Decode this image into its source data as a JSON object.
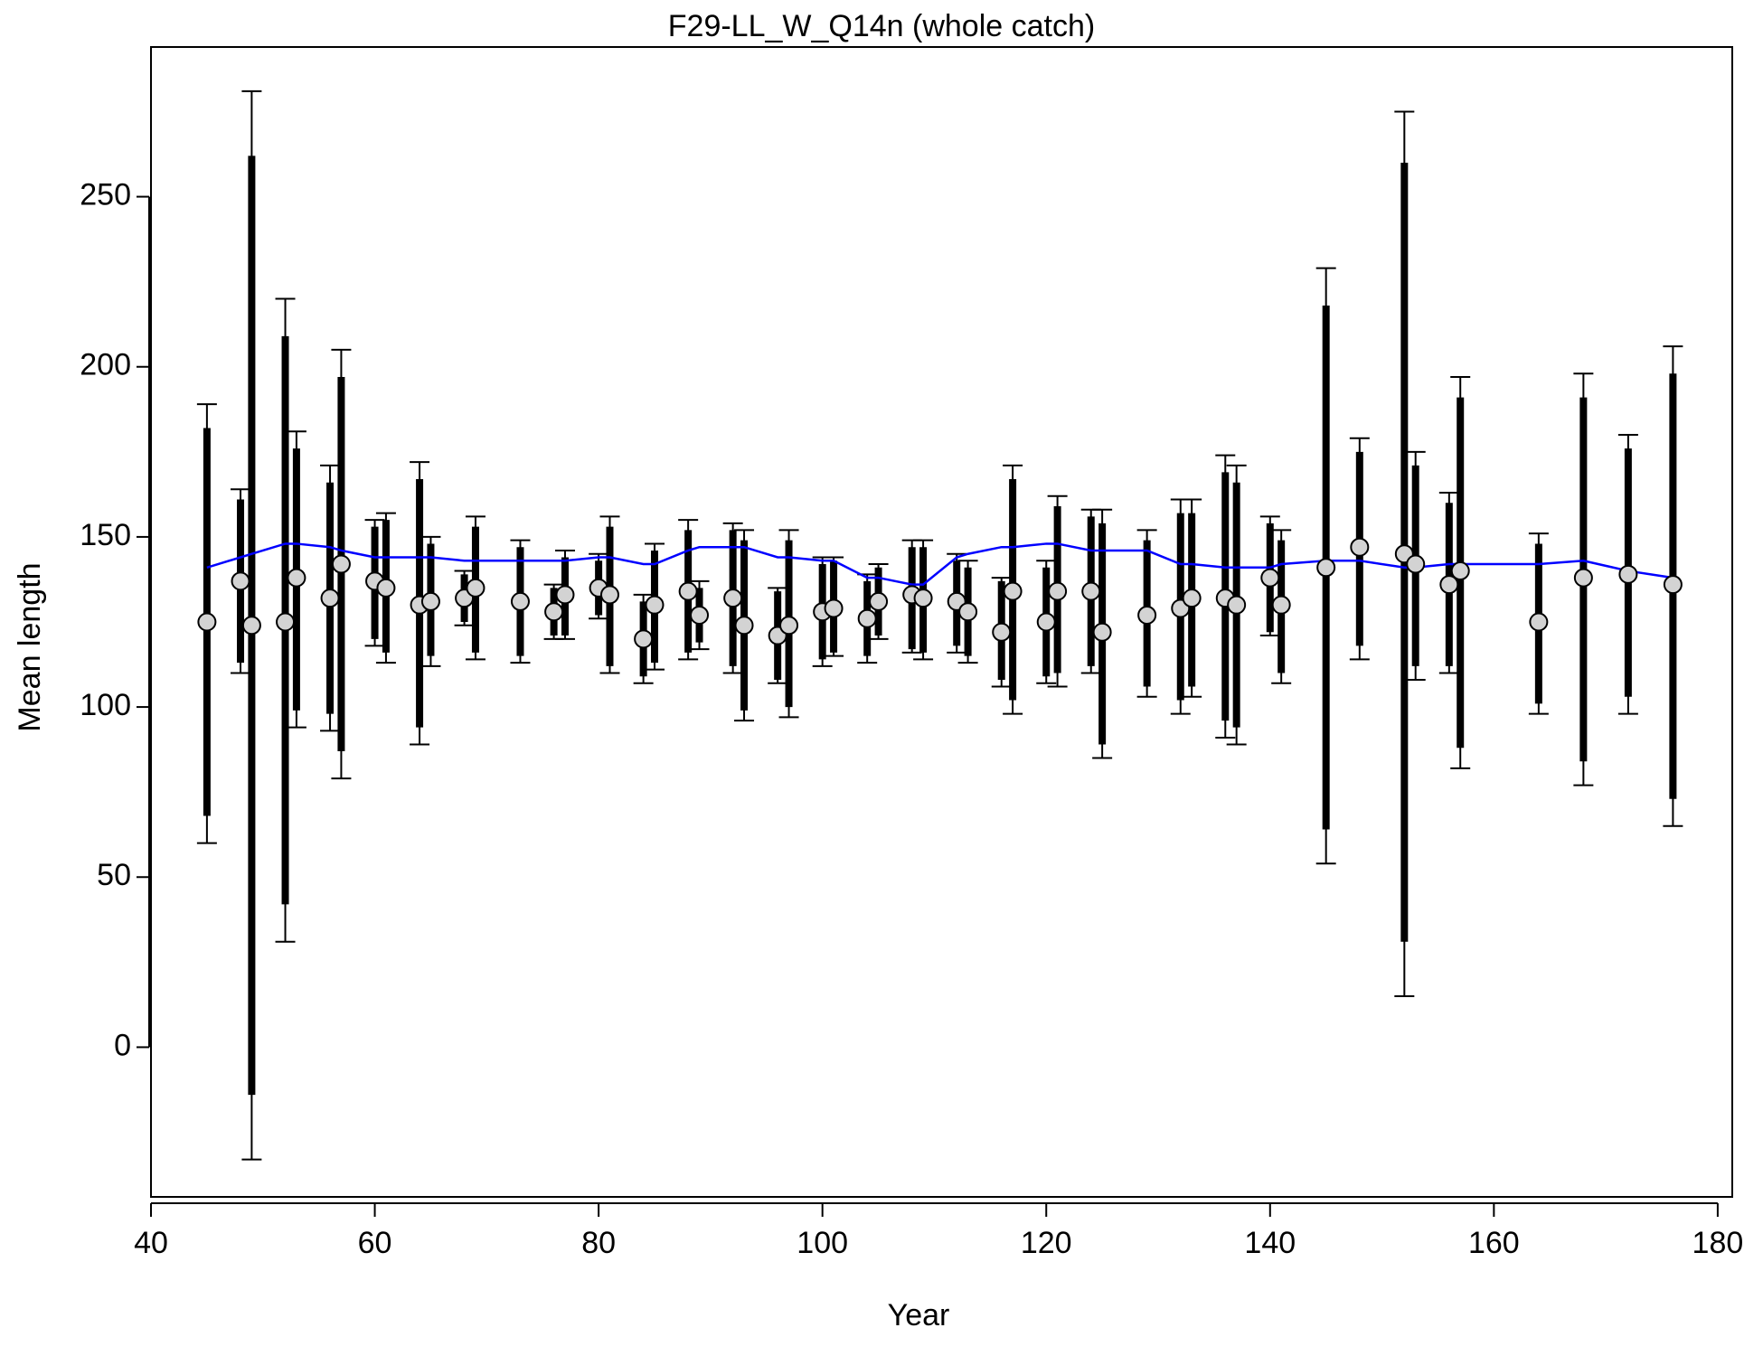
{
  "chart_data": {
    "type": "errorbar",
    "title": "F29-LL_W_Q14n (whole catch)",
    "x_label": "Year",
    "y_label": "Mean length",
    "x": [
      45,
      48,
      49,
      52,
      53,
      56,
      57,
      60,
      61,
      64,
      65,
      68,
      69,
      73,
      76,
      77,
      80,
      81,
      84,
      85,
      88,
      89,
      92,
      93,
      96,
      97,
      100,
      101,
      104,
      105,
      108,
      109,
      112,
      113,
      116,
      117,
      120,
      121,
      124,
      125,
      129,
      132,
      133,
      136,
      137,
      140,
      141,
      145,
      148,
      152,
      153,
      156,
      157,
      164,
      168,
      172,
      176
    ],
    "values": [
      125,
      137,
      124,
      125,
      138,
      132,
      142,
      137,
      135,
      130,
      131,
      132,
      135,
      131,
      128,
      133,
      135,
      133,
      120,
      130,
      134,
      127,
      132,
      124,
      121,
      124,
      128,
      129,
      126,
      131,
      133,
      132,
      131,
      128,
      122,
      134,
      125,
      134,
      134,
      122,
      127,
      129,
      132,
      132,
      130,
      138,
      130,
      141,
      147,
      145,
      142,
      136,
      140,
      125,
      138,
      139,
      136
    ],
    "inner_lo": [
      68,
      113,
      -14,
      42,
      99,
      98,
      87,
      120,
      116,
      94,
      115,
      125,
      116,
      115,
      121,
      121,
      127,
      112,
      109,
      113,
      116,
      119,
      112,
      99,
      108,
      100,
      114,
      116,
      115,
      121,
      117,
      116,
      118,
      115,
      108,
      102,
      109,
      110,
      112,
      89,
      106,
      102,
      106,
      96,
      94,
      122,
      110,
      64,
      118,
      31,
      112,
      112,
      88,
      101,
      84,
      103,
      73
    ],
    "inner_hi": [
      182,
      161,
      262,
      209,
      176,
      166,
      197,
      153,
      155,
      167,
      148,
      139,
      153,
      147,
      135,
      144,
      143,
      153,
      131,
      146,
      152,
      135,
      152,
      149,
      134,
      149,
      142,
      143,
      137,
      141,
      147,
      147,
      143,
      141,
      137,
      167,
      141,
      159,
      156,
      154,
      149,
      157,
      157,
      169,
      166,
      154,
      149,
      218,
      175,
      260,
      171,
      160,
      191,
      148,
      191,
      176,
      198
    ],
    "outer_lo": [
      60,
      110,
      -33,
      31,
      94,
      93,
      79,
      118,
      113,
      89,
      112,
      124,
      114,
      113,
      120,
      120,
      126,
      110,
      107,
      111,
      114,
      117,
      110,
      96,
      107,
      97,
      112,
      115,
      113,
      120,
      116,
      114,
      116,
      113,
      106,
      98,
      107,
      106,
      110,
      85,
      103,
      98,
      103,
      91,
      89,
      121,
      107,
      54,
      114,
      15,
      108,
      110,
      82,
      98,
      77,
      98,
      65
    ],
    "outer_hi": [
      189,
      164,
      281,
      220,
      181,
      171,
      205,
      155,
      157,
      172,
      150,
      140,
      156,
      149,
      136,
      146,
      145,
      156,
      133,
      148,
      155,
      137,
      154,
      152,
      135,
      152,
      144,
      144,
      139,
      142,
      149,
      149,
      145,
      143,
      138,
      171,
      143,
      162,
      158,
      158,
      152,
      161,
      161,
      174,
      171,
      156,
      152,
      229,
      179,
      275,
      175,
      163,
      197,
      151,
      198,
      180,
      206
    ],
    "expected": [
      141,
      144,
      145,
      148,
      148,
      147,
      146,
      144,
      144,
      144,
      144,
      143,
      143,
      143,
      143,
      143,
      144,
      144,
      142,
      142,
      146,
      147,
      147,
      147,
      144,
      144,
      143,
      143,
      138,
      138,
      136,
      136,
      144,
      145,
      147,
      147,
      148,
      148,
      146,
      146,
      146,
      142,
      142,
      141,
      141,
      141,
      142,
      143,
      143,
      141,
      141,
      142,
      142,
      142,
      143,
      140,
      138
    ],
    "line_color": "#0000ff",
    "point_color": "#d3d3d3",
    "xlim": [
      40,
      181.3
    ],
    "ylim": [
      -44,
      294
    ],
    "xticks": [
      40,
      60,
      80,
      100,
      120,
      140,
      160,
      180
    ],
    "yticks": [
      0,
      50,
      100,
      150,
      200,
      250
    ]
  }
}
